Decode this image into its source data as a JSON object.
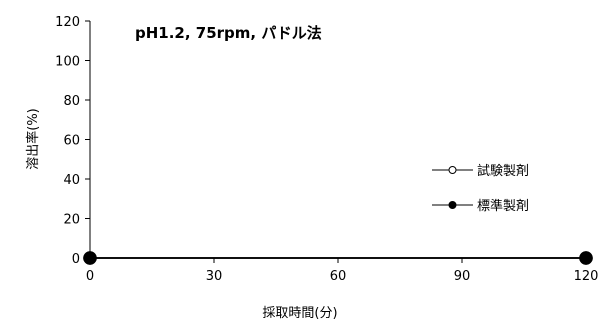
{
  "chart_data": {
    "type": "line",
    "title": "pH1.2, 75rpm, パドル法",
    "xlabel": "採取時間(分)",
    "ylabel": "溶出率(%)",
    "xlim": [
      0,
      120
    ],
    "ylim": [
      0,
      120
    ],
    "x_ticks": [
      0,
      30,
      60,
      90,
      120
    ],
    "y_ticks": [
      0,
      20,
      40,
      60,
      80,
      100,
      120
    ],
    "grid": false,
    "legend_position": "right",
    "series": [
      {
        "name": "試験製剤",
        "marker": "open-circle",
        "color": "#000000",
        "x": [
          0,
          120
        ],
        "y": [
          0,
          0
        ]
      },
      {
        "name": "標準製剤",
        "marker": "filled-circle",
        "color": "#000000",
        "x": [
          0,
          120
        ],
        "y": [
          0,
          0
        ]
      }
    ]
  }
}
